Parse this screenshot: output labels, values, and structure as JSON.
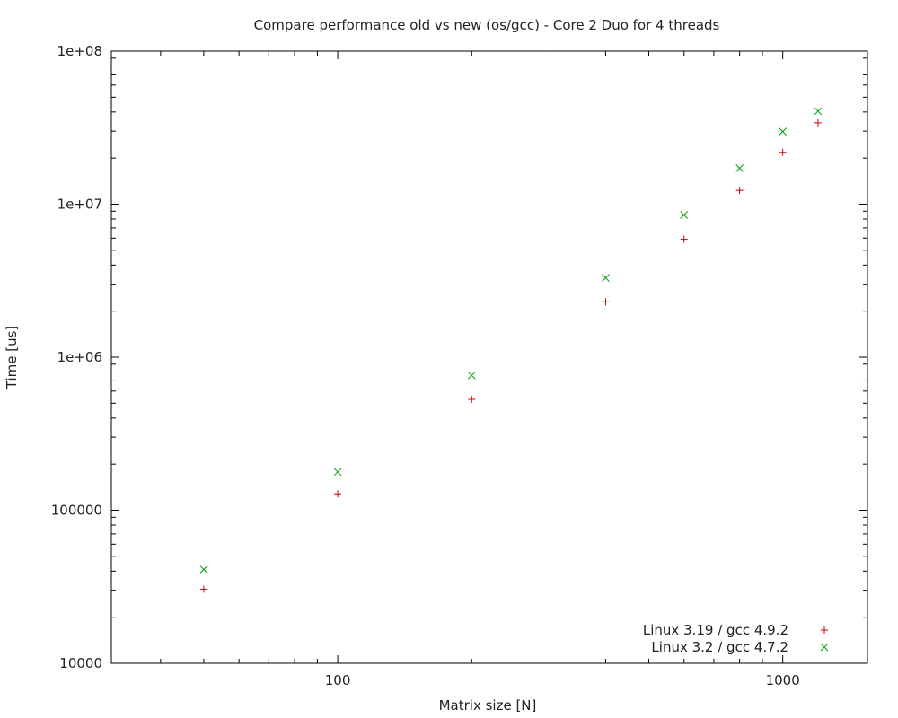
{
  "chart_data": {
    "type": "scatter",
    "title": "Compare performance old vs new (os/gcc) - Core 2 Duo for 4 threads",
    "xlabel": "Matrix size [N]",
    "ylabel": "Time [us]",
    "xscale": "log",
    "yscale": "log",
    "xlim": [
      31,
      1550
    ],
    "ylim": [
      10000,
      100000000
    ],
    "xticks": [
      {
        "value": 100,
        "label": "100"
      },
      {
        "value": 1000,
        "label": "1000"
      }
    ],
    "yticks": [
      {
        "value": 10000,
        "label": "10000"
      },
      {
        "value": 100000,
        "label": "100000"
      },
      {
        "value": 1000000,
        "label": "1e+06"
      },
      {
        "value": 10000000,
        "label": "1e+07"
      },
      {
        "value": 100000000,
        "label": "1e+08"
      }
    ],
    "grid": false,
    "legend_position": "bottom-right",
    "series": [
      {
        "name": "Linux 3.19 / gcc 4.9.2",
        "marker": "plus",
        "color": "#cc0000",
        "x": [
          50,
          100,
          200,
          400,
          600,
          800,
          1000,
          1200
        ],
        "y": [
          30500,
          128000,
          530000,
          2300000,
          5900000,
          12300000,
          21800000,
          34000000
        ]
      },
      {
        "name": "Linux 3.2 / gcc 4.7.2",
        "marker": "cross",
        "color": "#00a000",
        "x": [
          50,
          100,
          200,
          400,
          600,
          800,
          1000,
          1200
        ],
        "y": [
          41000,
          178000,
          760000,
          3300000,
          8500000,
          17200000,
          29800000,
          40500000
        ]
      }
    ]
  }
}
